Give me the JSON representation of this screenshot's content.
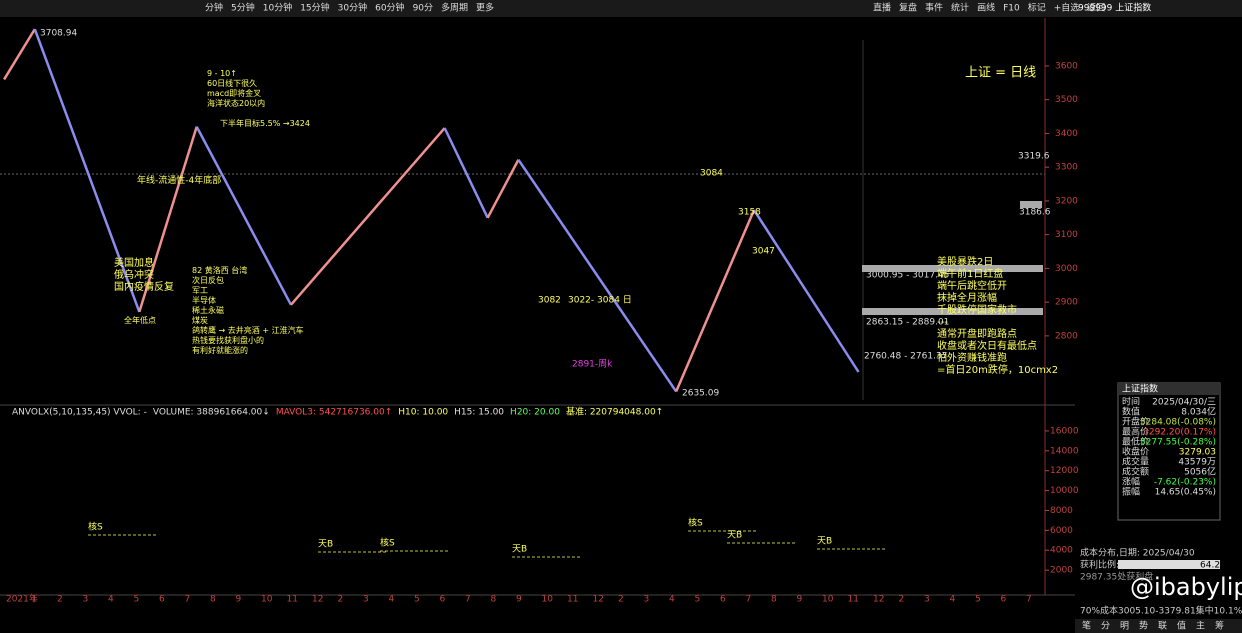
{
  "toolbar": {
    "periods": [
      "分钟",
      "5分钟",
      "10分钟",
      "15分钟",
      "30分钟",
      "60分钟",
      "90分",
      "多周期",
      "更多"
    ],
    "actions": [
      "直播",
      "复盘",
      "事件",
      "统计",
      "画线",
      "F10",
      "标记",
      "+自选",
      "返回"
    ],
    "symbol": "999999 上证指数"
  },
  "chart_data": {
    "type": "line",
    "title": "上证 = 日线",
    "xlim": [
      0,
      51
    ],
    "ylim": [
      2610,
      3742
    ],
    "yticks": [
      2800,
      2900,
      3000,
      3100,
      3200,
      3300,
      3400,
      3500,
      3600
    ],
    "x": [
      0.2,
      1.7,
      6.8,
      9.6,
      14.2,
      21.7,
      23.8,
      25.3,
      33,
      36.8,
      41.9
    ],
    "series": [
      {
        "color": "#8c8cf0",
        "up_color": "#f09090",
        "values": [
          3560,
          3708.94,
          2871,
          3420,
          2892,
          3416,
          3150,
          3322,
          2635.09,
          3173,
          2693
        ]
      }
    ],
    "x_labels": [
      "2021年",
      "1",
      "2",
      "3",
      "4",
      "5",
      "6",
      "7",
      "8",
      "9",
      "10",
      "11",
      "12",
      "2",
      "3",
      "4",
      "5",
      "6",
      "7",
      "8",
      "9",
      "10",
      "11",
      "12",
      "2",
      "3",
      "4",
      "5",
      "6",
      "7",
      "8",
      "9",
      "10",
      "11",
      "12",
      "2",
      "3",
      "4",
      "5",
      "6",
      "7"
    ],
    "price_labels": [
      "3708.94",
      "2635.09",
      "3158",
      "3047",
      "3082",
      "3022- 3084 日",
      "2891-周k",
      "3084",
      "3319.6",
      "3186.6",
      "3000.95 - 3017.45",
      "2863.15 - 2889.01",
      "2760.48 - 2761.37"
    ],
    "annotations": [
      "9 - 10↑\n60日线下很久\nmacd即将金叉\n海洋状态20以内",
      "下半年目标5.5% →3424",
      "年线-流通性-4年底部",
      "美国加息\n俄乌冲突\n国内疫情反复",
      "全年低点",
      "82 黄洛西 台湾\n次日反包\n军工\n半导体\n稀土永磁\n煤炭\n鸽转鹰 → 去井亮酒 + 江淮汽车\n热钱要找获利盘小的\n有利好就能涨的",
      "美股暴跌2日\n端午前1日红盘\n端午后跳空低开\n抹掉全月涨幅\n千股跌停国家救市\n---\n通常开盘即跑路点\n收盘或者次日有最低点\n怕外资赚钱准跑\n=首日20m跌停，10cmx2"
    ],
    "volume": {
      "legend": [
        "ANVOLX(5,10,135,45) VVOL: -",
        "VOLUME: 388961664.00↓",
        "MAVOL3: 542716736.00↑",
        "H10: 10.00",
        "H15: 15.00",
        "H20: 20.00",
        "基准: 220794048.00↑"
      ],
      "ylim": [
        0,
        17100
      ],
      "yticks": [
        2000,
        4000,
        6000,
        8000,
        10000,
        12000,
        14000,
        16000
      ],
      "signals": [
        "核S",
        "天B",
        "核S",
        "天B",
        "核S",
        "天B",
        "天B"
      ]
    }
  },
  "info_panel": {
    "title": "上证指数",
    "rows": [
      [
        "时间",
        "2025/04/30/三"
      ],
      [
        "数值",
        "8.034亿"
      ],
      [
        "开盘价",
        "3284.08(-0.08%)"
      ],
      [
        "最高价",
        "3292.20(0.17%)"
      ],
      [
        "最低价",
        "3277.55(-0.28%)"
      ],
      [
        "收盘价",
        "3279.03"
      ],
      [
        "成交量",
        "43579万"
      ],
      [
        "成交额",
        "5056亿"
      ],
      [
        "涨幅",
        "-7.62(-0.23%)"
      ],
      [
        "振幅",
        "14.65(0.45%)"
      ]
    ]
  },
  "cost_panel": {
    "title": "成本分布,日期: 2025/04/30",
    "profit_label": "获利比例:",
    "profit": "64.2%",
    "line1": "2987.35处获利盘",
    "line2": "70%成本3005.10-3379.81集中10.1%"
  },
  "bottom_buttons": [
    "笔",
    "分",
    "明",
    "势",
    "联",
    "值",
    "主",
    "筹"
  ],
  "watermark": "@ibabylips"
}
